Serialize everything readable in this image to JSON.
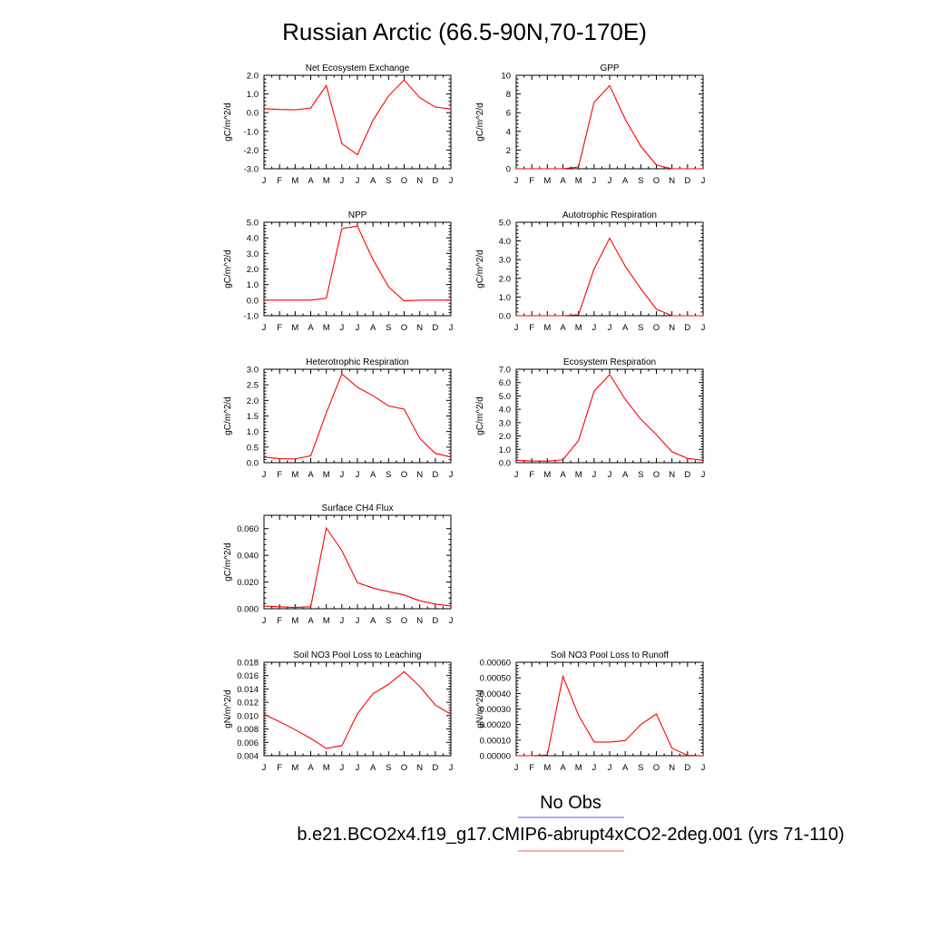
{
  "page_title": "Russian Arctic (66.5-90N,70-170E)",
  "month_ticks": [
    "J",
    "F",
    "M",
    "A",
    "M",
    "J",
    "J",
    "A",
    "S",
    "O",
    "N",
    "D",
    "J"
  ],
  "colors": {
    "model": "#ff0000",
    "obs": "#0000ff",
    "frame": "#000000"
  },
  "legend": [
    {
      "label": "No Obs",
      "color": "#7777ff"
    },
    {
      "label": "b.e21.BCO2x4.f19_g17.CMIP6-abrupt4xCO2-2deg.001 (yrs 71-110)",
      "color": "#ff7777"
    }
  ],
  "chart_data": [
    {
      "type": "line",
      "title": "Net Ecosystem Exchange",
      "ylabel": "gC/m^2/d",
      "ylim": [
        -3.0,
        2.0
      ],
      "yticks": [
        -3.0,
        -2.0,
        -1.0,
        0.0,
        1.0,
        2.0
      ],
      "ytick_labels": [
        "-3.0",
        "-2.0",
        "-1.0",
        "0.0",
        "1.0",
        "2.0"
      ],
      "series": [
        {
          "values": [
            0.22,
            0.17,
            0.15,
            0.25,
            1.45,
            -1.65,
            -2.25,
            -0.4,
            0.9,
            1.75,
            0.8,
            0.3,
            0.2
          ]
        }
      ]
    },
    {
      "type": "line",
      "title": "GPP",
      "ylabel": "gC/m^2/d",
      "ylim": [
        0,
        10
      ],
      "yticks": [
        0,
        2,
        4,
        6,
        8,
        10
      ],
      "ytick_labels": [
        "0",
        "2",
        "4",
        "6",
        "8",
        "10"
      ],
      "series": [
        {
          "values": [
            0,
            0,
            0,
            0,
            0.2,
            7.1,
            8.9,
            5.3,
            2.4,
            0.4,
            0,
            0,
            0
          ]
        }
      ]
    },
    {
      "type": "line",
      "title": "NPP",
      "ylabel": "gC/m^2/d",
      "ylim": [
        -1.0,
        5.0
      ],
      "yticks": [
        -1.0,
        0.0,
        1.0,
        2.0,
        3.0,
        4.0,
        5.0
      ],
      "ytick_labels": [
        "-1.0",
        "0.0",
        "1.0",
        "2.0",
        "3.0",
        "4.0",
        "5.0"
      ],
      "series": [
        {
          "values": [
            0,
            0,
            0,
            0,
            0.12,
            4.6,
            4.75,
            2.6,
            0.85,
            -0.05,
            0,
            0,
            0
          ]
        }
      ]
    },
    {
      "type": "line",
      "title": "Autotrophic Respiration",
      "ylabel": "gC/m^2/d",
      "ylim": [
        0,
        5.0
      ],
      "yticks": [
        0,
        1.0,
        2.0,
        3.0,
        4.0,
        5.0
      ],
      "ytick_labels": [
        "0.0",
        "1.0",
        "2.0",
        "3.0",
        "4.0",
        "5.0"
      ],
      "series": [
        {
          "values": [
            0,
            0,
            0,
            0,
            0.05,
            2.5,
            4.15,
            2.65,
            1.45,
            0.35,
            0,
            0,
            0
          ]
        }
      ]
    },
    {
      "type": "line",
      "title": "Heterotrophic Respiration",
      "ylabel": "gC/m^2/d",
      "ylim": [
        0,
        3.0
      ],
      "yticks": [
        0,
        0.5,
        1.0,
        1.5,
        2.0,
        2.5,
        3.0
      ],
      "ytick_labels": [
        "0.0",
        "0.5",
        "1.0",
        "1.5",
        "2.0",
        "2.5",
        "3.0"
      ],
      "series": [
        {
          "values": [
            0.18,
            0.13,
            0.12,
            0.22,
            1.6,
            2.85,
            2.42,
            2.15,
            1.82,
            1.72,
            0.78,
            0.3,
            0.18
          ]
        }
      ]
    },
    {
      "type": "line",
      "title": "Ecosystem Respiration",
      "ylabel": "gC/m^2/d",
      "ylim": [
        0,
        7.0
      ],
      "yticks": [
        0,
        1.0,
        2.0,
        3.0,
        4.0,
        5.0,
        6.0,
        7.0
      ],
      "ytick_labels": [
        "0.0",
        "1.0",
        "2.0",
        "3.0",
        "4.0",
        "5.0",
        "6.0",
        "7.0"
      ],
      "series": [
        {
          "values": [
            0.18,
            0.13,
            0.12,
            0.22,
            1.65,
            5.35,
            6.6,
            4.75,
            3.25,
            2.1,
            0.82,
            0.32,
            0.18
          ]
        }
      ]
    },
    {
      "type": "line",
      "title": "Surface CH4 Flux",
      "ylabel": "gC/m^2/d",
      "ylim": [
        0,
        0.07
      ],
      "yticks": [
        0,
        0.02,
        0.04,
        0.06
      ],
      "ytick_labels": [
        "0.000",
        "0.020",
        "0.040",
        "0.060"
      ],
      "series": [
        {
          "values": [
            0.002,
            0.0015,
            0.001,
            0.0015,
            0.0605,
            0.0435,
            0.0195,
            0.0155,
            0.0128,
            0.0103,
            0.006,
            0.0035,
            0.002
          ]
        }
      ]
    },
    {
      "type": "line",
      "title": "Soil NO3 Pool Loss to Leaching",
      "ylabel": "gN/m^2/d",
      "ylim": [
        0.004,
        0.018
      ],
      "yticks": [
        0.004,
        0.006,
        0.008,
        0.01,
        0.012,
        0.014,
        0.016,
        0.018
      ],
      "ytick_labels": [
        "0.004",
        "0.006",
        "0.008",
        "0.010",
        "0.012",
        "0.014",
        "0.016",
        "0.018"
      ],
      "series": [
        {
          "values": [
            0.0102,
            0.0091,
            0.0079,
            0.0066,
            0.0051,
            0.0055,
            0.0103,
            0.0133,
            0.0147,
            0.0166,
            0.0144,
            0.0116,
            0.0102
          ]
        }
      ]
    },
    {
      "type": "line",
      "title": "Soil NO3 Pool Loss to Runoff",
      "ylabel": "gN/m^2/d",
      "ylim": [
        0,
        0.0006
      ],
      "yticks": [
        0,
        0.0001,
        0.0002,
        0.0003,
        0.0004,
        0.0005,
        0.0006
      ],
      "ytick_labels": [
        "0.00000",
        "0.00010",
        "0.00020",
        "0.00030",
        "0.00040",
        "0.00050",
        "0.00060"
      ],
      "series": [
        {
          "values": [
            0,
            0,
            5e-06,
            0.00051,
            0.00026,
            8.8e-05,
            8.8e-05,
            9.7e-05,
            0.0002,
            0.000268,
            4.8e-05,
            3e-06,
            0
          ]
        }
      ]
    }
  ]
}
